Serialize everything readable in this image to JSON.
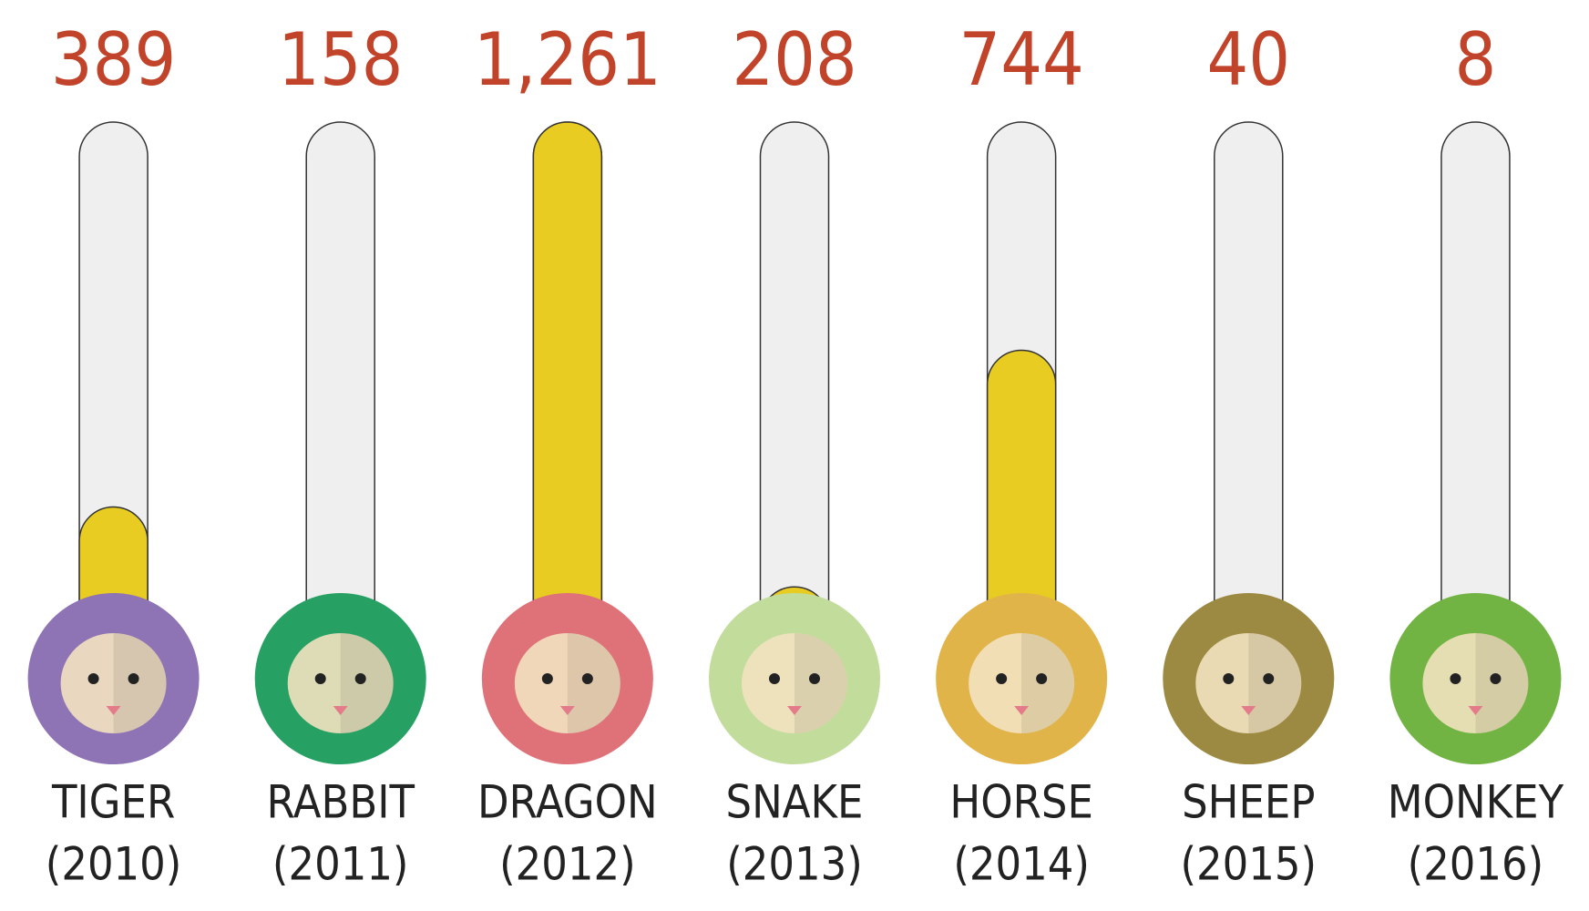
{
  "chart_data": {
    "type": "thermometer",
    "categories": [
      "TIGER",
      "RABBIT",
      "DRAGON",
      "SNAKE",
      "HORSE",
      "SHEEP",
      "MONKEY"
    ],
    "years": [
      "(2010)",
      "(2011)",
      "(2012)",
      "(2013)",
      "(2014)",
      "(2015)",
      "(2016)"
    ],
    "values": [
      389,
      158,
      1261,
      208,
      744,
      40,
      8
    ],
    "value_labels": [
      "389",
      "158",
      "1,261",
      "208",
      "744",
      "40",
      "8"
    ],
    "color": "#e8cc22",
    "circle_colors": [
      "#8e73b5",
      "#27a163",
      "#df7179",
      "#c2dc9b",
      "#e1b44a",
      "#9c8a43",
      "#72b443"
    ],
    "ylim": [
      0,
      1261
    ]
  }
}
